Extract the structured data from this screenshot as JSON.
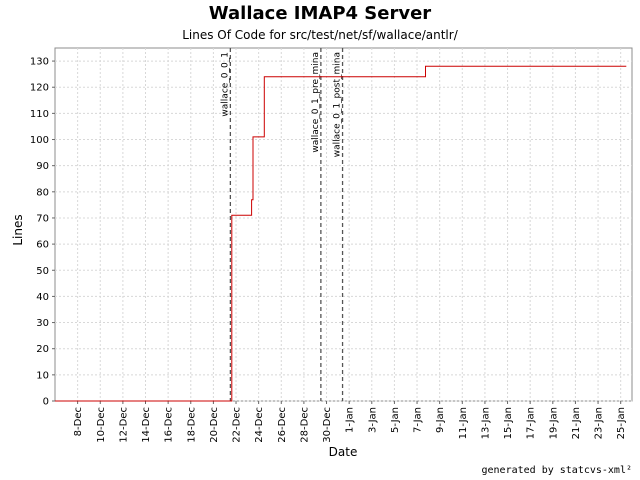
{
  "chart_data": {
    "type": "line",
    "title": "Wallace IMAP4 Server",
    "subtitle": "Lines Of Code for src/test/net/sf/wallace/antlr/",
    "xlabel": "Date",
    "ylabel": "Lines",
    "xlim": [
      "2002-12-06",
      "2003-01-26"
    ],
    "ylim": [
      0,
      135
    ],
    "y_ticks": [
      0,
      10,
      20,
      30,
      40,
      50,
      60,
      70,
      80,
      90,
      100,
      110,
      120,
      130
    ],
    "x_ticks": [
      {
        "date": "2002-12-08",
        "label": "8-Dec"
      },
      {
        "date": "2002-12-10",
        "label": "10-Dec"
      },
      {
        "date": "2002-12-12",
        "label": "12-Dec"
      },
      {
        "date": "2002-12-14",
        "label": "14-Dec"
      },
      {
        "date": "2002-12-16",
        "label": "16-Dec"
      },
      {
        "date": "2002-12-18",
        "label": "18-Dec"
      },
      {
        "date": "2002-12-20",
        "label": "20-Dec"
      },
      {
        "date": "2002-12-22",
        "label": "22-Dec"
      },
      {
        "date": "2002-12-24",
        "label": "24-Dec"
      },
      {
        "date": "2002-12-26",
        "label": "26-Dec"
      },
      {
        "date": "2002-12-28",
        "label": "28-Dec"
      },
      {
        "date": "2002-12-30",
        "label": "30-Dec"
      },
      {
        "date": "2003-01-01",
        "label": "1-Jan"
      },
      {
        "date": "2003-01-03",
        "label": "3-Jan"
      },
      {
        "date": "2003-01-05",
        "label": "5-Jan"
      },
      {
        "date": "2003-01-07",
        "label": "7-Jan"
      },
      {
        "date": "2003-01-09",
        "label": "9-Jan"
      },
      {
        "date": "2003-01-11",
        "label": "11-Jan"
      },
      {
        "date": "2003-01-13",
        "label": "13-Jan"
      },
      {
        "date": "2003-01-15",
        "label": "15-Jan"
      },
      {
        "date": "2003-01-17",
        "label": "17-Jan"
      },
      {
        "date": "2003-01-19",
        "label": "19-Jan"
      },
      {
        "date": "2003-01-21",
        "label": "21-Jan"
      },
      {
        "date": "2003-01-23",
        "label": "23-Jan"
      },
      {
        "date": "2003-01-25",
        "label": "25-Jan"
      }
    ],
    "series": [
      {
        "color": "#cc0000",
        "step": true,
        "points": [
          {
            "date": "2002-12-06",
            "value": 0
          },
          {
            "date": "2002-12-21T14:00",
            "value": 0
          },
          {
            "date": "2002-12-21T15:00",
            "value": 71
          },
          {
            "date": "2002-12-23T09:00",
            "value": 77
          },
          {
            "date": "2002-12-23T12:00",
            "value": 101
          },
          {
            "date": "2002-12-24T12:00",
            "value": 124
          },
          {
            "date": "2003-01-07T18:00",
            "value": 128
          },
          {
            "date": "2003-01-25T12:00",
            "value": 128
          }
        ]
      }
    ],
    "markers": [
      {
        "label": "wallace_0_0_1",
        "date": "2002-12-21T12:00"
      },
      {
        "label": "wallace_0_1_pre_mina",
        "date": "2002-12-29T12:00"
      },
      {
        "label": "wallace_0_1_post_mina",
        "date": "2002-12-31T10:00"
      }
    ],
    "grid": true,
    "legend": "none"
  },
  "footer": "generated by statcvs-xml²"
}
